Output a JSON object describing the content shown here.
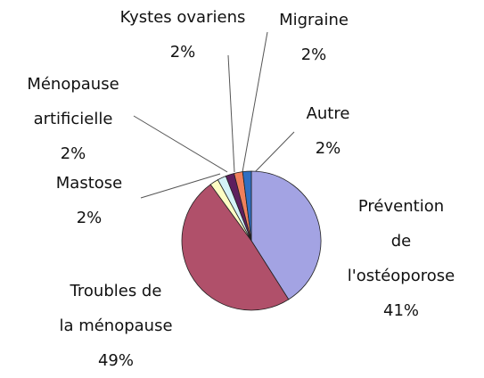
{
  "chart_data": {
    "type": "pie",
    "categories": [
      "Prévention de l'ostéoporose",
      "Troubles de la ménopause",
      "Mastose",
      "Ménopause artificielle",
      "Kystes ovariens",
      "Migraine",
      "Autre"
    ],
    "values": [
      41,
      49,
      2,
      2,
      2,
      2,
      2
    ],
    "value_labels": [
      "41%",
      "49%",
      "2%",
      "2%",
      "2%",
      "2%",
      "2%"
    ],
    "colors": [
      "#a3a3e3",
      "#b0506a",
      "#fdfdc4",
      "#d4f2f8",
      "#5e1f5e",
      "#f0805c",
      "#2f6fc2"
    ]
  }
}
